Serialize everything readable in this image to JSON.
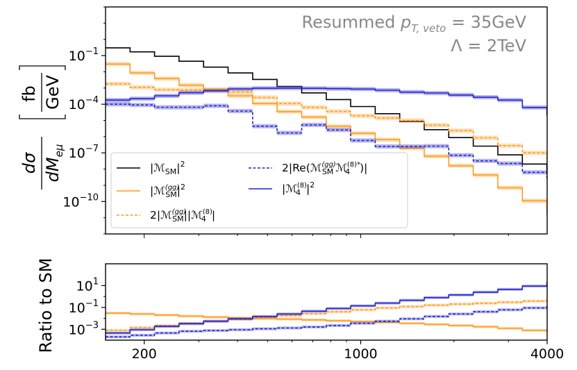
{
  "chart_data": [
    {
      "type": "line",
      "x_scale": "log",
      "y_scale": "log",
      "bin_edges": [
        150,
        180,
        216,
        259,
        311,
        373,
        448,
        537,
        645,
        774,
        928,
        1114,
        1337,
        1604,
        1925,
        2310,
        2772,
        3326,
        3991,
        4000
      ],
      "xlim": [
        150,
        4000
      ],
      "ylim": [
        1e-12,
        100
      ],
      "y_tick_labels": [
        "10^-1",
        "10^-4",
        "10^-7",
        "10^-10"
      ],
      "ylabel": "dσ/dM_eμ [fb/GeV]",
      "annotation": [
        "Resummed p_T,veto = 35GeV",
        "Λ = 2TeV"
      ],
      "legend_position": "lower-left",
      "series": [
        {
          "name": "|M_SM|^2",
          "legend_label": "|ℳSM|²",
          "color": "#000000",
          "style": "solid",
          "band": false,
          "values": [
            0.3,
            0.17,
            0.09,
            0.045,
            0.0195,
            0.0085,
            0.0034,
            0.00125,
            0.0005,
            0.000195,
            7.2e-05,
            2.6e-05,
            8.5e-06,
            2.7e-06,
            8.8e-07,
            2.6e-07,
            7.5e-08,
            2.05e-08,
            5.3e-09
          ]
        },
        {
          "name": "|M_SM^(gg)|^2",
          "legend_label": "|ℳSM(gg)|²",
          "color": "#ff9a1f",
          "style": "solid",
          "band": true,
          "values": [
            0.03,
            0.0085,
            0.0038,
            0.0015,
            0.00078,
            0.00033,
            0.00011,
            3.5e-05,
            1.6e-05,
            4.4e-06,
            1.6e-06,
            6.5e-07,
            1.95e-07,
            6.2e-08,
            1.6e-08,
            4.3e-09,
            7e-10,
            1.1e-10,
            1.6e-11
          ]
        },
        {
          "name": "2|M_SM^(gg)||M_4^(8)|",
          "legend_label": "2|ℳSM(gg)||ℳ4(8)|",
          "color": "#ff9a1f",
          "style": "dashed",
          "band": true,
          "values": [
            0.0018,
            0.0011,
            0.00078,
            0.00075,
            0.00078,
            0.00057,
            0.00026,
            0.00011,
            6.4e-05,
            3.6e-05,
            1.95e-05,
            1.4e-05,
            1e-05,
            5.1e-06,
            2.35e-06,
            8.5e-07,
            2.8e-07,
            1e-07,
            2.8e-08
          ]
        },
        {
          "name": "2|Re(M_SM^(gg) M_4^(8)*)|",
          "legend_label": "2|Re(ℳSM(gg)ℳ4(8)*)|",
          "color": "#2222cc",
          "style": "dashed",
          "band": true,
          "values": [
            0.0001,
            9e-05,
            6.5e-05,
            6.5e-05,
            8e-05,
            3.8e-05,
            4.4e-06,
            1.7e-06,
            5.3e-06,
            2.6e-06,
            5.8e-07,
            2.5e-07,
            2.5e-07,
            2.6e-07,
            7.1e-08,
            3.2e-08,
            2.2e-08,
            6.3e-09,
            2.3e-09
          ]
        },
        {
          "name": "|M_4^(8)|^2",
          "legend_label": "|ℳ4(8)|²",
          "color": "#2222cc",
          "style": "solid",
          "band": true,
          "values": [
            0.00018,
            0.00022,
            0.00033,
            0.00051,
            0.00067,
            0.00088,
            0.00097,
            0.00099,
            0.00096,
            0.00091,
            0.00086,
            0.00073,
            0.00056,
            0.00049,
            0.00037,
            0.00027,
            0.00018,
            6.3e-05,
            2.2e-05
          ]
        }
      ]
    },
    {
      "type": "line",
      "x_scale": "log",
      "y_scale": "log",
      "bin_edges": [
        150,
        180,
        216,
        259,
        311,
        373,
        448,
        537,
        645,
        774,
        928,
        1114,
        1337,
        1604,
        1925,
        2310,
        2772,
        3326,
        3991,
        4000
      ],
      "xlim": [
        150,
        4000
      ],
      "ylim": [
        0.0001,
        1000
      ],
      "x_ticks": [
        200,
        1000,
        4000
      ],
      "x_tick_labels": [
        "200",
        "1000",
        "4000"
      ],
      "y_tick_labels": [
        "10^1",
        "10^-1",
        "10^-3"
      ],
      "ylabel": "Ratio to SM",
      "series": [
        {
          "color": "#ff9a1f",
          "style": "solid",
          "band": true,
          "values": [
            0.03,
            0.025,
            0.02,
            0.016,
            0.013,
            0.011,
            0.0095,
            0.0085,
            0.0072,
            0.006,
            0.005,
            0.0043,
            0.0035,
            0.0028,
            0.0022,
            0.0017,
            0.0012,
            0.0008,
            0.00055
          ]
        },
        {
          "color": "#ff9a1f",
          "style": "dashed",
          "band": true,
          "values": [
            0.0008,
            0.0014,
            0.0022,
            0.0035,
            0.0052,
            0.0078,
            0.012,
            0.018,
            0.027,
            0.04,
            0.06,
            0.09,
            0.12,
            0.16,
            0.2,
            0.24,
            0.3,
            0.38,
            0.48
          ]
        },
        {
          "color": "#2222cc",
          "style": "dashed",
          "band": true,
          "values": [
            0.0002,
            0.00028,
            0.00045,
            0.00065,
            0.00075,
            0.0009,
            0.0011,
            0.0013,
            0.0016,
            0.0022,
            0.0035,
            0.0055,
            0.009,
            0.015,
            0.025,
            0.04,
            0.06,
            0.09,
            0.14
          ]
        },
        {
          "color": "#2222cc",
          "style": "solid",
          "band": true,
          "values": [
            0.00045,
            0.0009,
            0.0018,
            0.0032,
            0.0055,
            0.009,
            0.015,
            0.025,
            0.045,
            0.08,
            0.14,
            0.25,
            0.45,
            0.8,
            1.4,
            2.5,
            4.5,
            9,
            20
          ]
        }
      ]
    }
  ]
}
